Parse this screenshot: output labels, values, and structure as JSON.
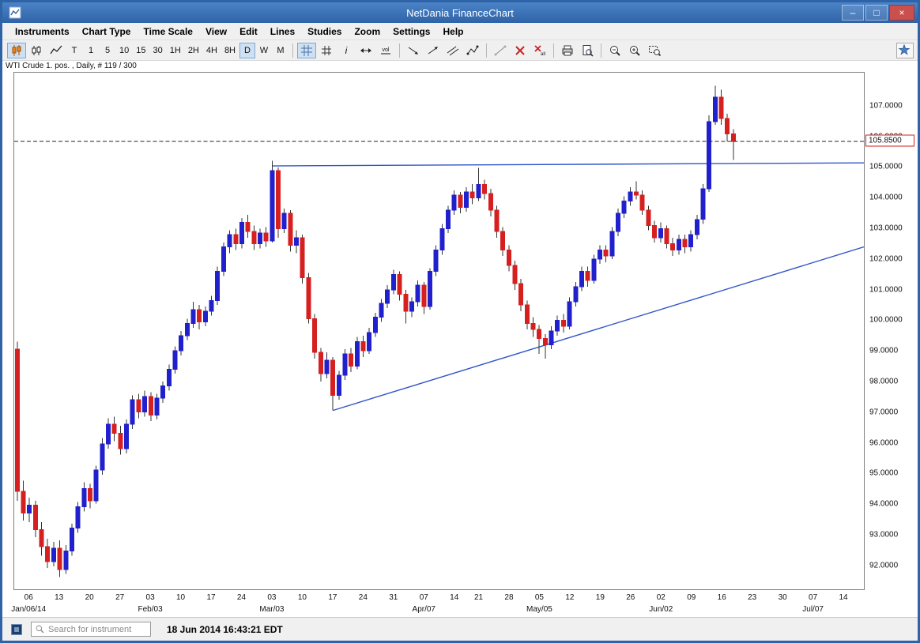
{
  "window": {
    "title": "NetDania FinanceChart",
    "controls": [
      {
        "icon": "minimize-icon"
      },
      {
        "icon": "maximize-icon"
      },
      {
        "icon": "close-icon"
      }
    ]
  },
  "menu": {
    "items": [
      "Instruments",
      "Chart Type",
      "Time Scale",
      "View",
      "Edit",
      "Lines",
      "Studies",
      "Zoom",
      "Settings",
      "Help"
    ]
  },
  "toolbar": {
    "items": [
      {
        "icon": "candlestick-chart-icon",
        "selected": true
      },
      {
        "icon": "ohlc-bars-icon"
      },
      {
        "icon": "line-chart-icon"
      },
      {
        "label": "T"
      },
      {
        "label": "1"
      },
      {
        "label": "5"
      },
      {
        "label": "10"
      },
      {
        "label": "15"
      },
      {
        "label": "30"
      },
      {
        "label": "1H"
      },
      {
        "label": "2H"
      },
      {
        "label": "4H"
      },
      {
        "label": "8H"
      },
      {
        "label": "D",
        "selected": true
      },
      {
        "label": "W"
      },
      {
        "label": "M"
      },
      {
        "sep": true
      },
      {
        "icon": "grid-icon",
        "selected": true
      },
      {
        "icon": "crosshair-grid-icon"
      },
      {
        "icon": "info-icon"
      },
      {
        "icon": "horizontal-pan-icon"
      },
      {
        "icon": "volume-icon"
      },
      {
        "sep": true
      },
      {
        "icon": "trendline-down-icon"
      },
      {
        "icon": "trendline-up-icon"
      },
      {
        "icon": "channel-lines-icon"
      },
      {
        "icon": "polyline-icon"
      },
      {
        "sep": true
      },
      {
        "icon": "line-segment-icon"
      },
      {
        "icon": "delete-line-icon"
      },
      {
        "icon": "delete-all-lines-icon"
      },
      {
        "sep": true
      },
      {
        "icon": "print-icon"
      },
      {
        "icon": "print-preview-icon"
      },
      {
        "sep": true
      },
      {
        "icon": "zoom-out-icon"
      },
      {
        "icon": "zoom-in-icon"
      },
      {
        "icon": "zoom-selection-icon"
      }
    ],
    "right_icon": "favorites-icon"
  },
  "chart": {
    "label": "WTI Crude 1. pos. , Daily, # 119 / 300"
  },
  "chart_data": {
    "type": "candlestick",
    "title": "WTI Crude 1. pos. , Daily, # 119 / 300",
    "instrument": "WTI Crude 1. pos.",
    "timeframe": "Daily",
    "visible_candles": 119,
    "total_candles": 300,
    "ylim": [
      91.2,
      108.1
    ],
    "total_slots": 140,
    "last_price": "105.8500",
    "last_price_value": 105.85,
    "up_color": "#2020cc",
    "down_color": "#d62020",
    "wick_color": "#333333",
    "trend_color": "#2f55c8",
    "grid": false,
    "price_axis_labels": [
      "107.0000",
      "106.0000",
      "105.0000",
      "104.0000",
      "103.0000",
      "102.0000",
      "101.0000",
      "100.0000",
      "99.0000",
      "98.0000",
      "97.0000",
      "96.0000",
      "95.0000",
      "94.0000",
      "93.0000",
      "92.0000"
    ],
    "day_ticks": [
      [
        2,
        "06"
      ],
      [
        7,
        "13"
      ],
      [
        12,
        "20"
      ],
      [
        17,
        "27"
      ],
      [
        22,
        "03"
      ],
      [
        27,
        "10"
      ],
      [
        32,
        "17"
      ],
      [
        37,
        "24"
      ],
      [
        42,
        "03"
      ],
      [
        47,
        "10"
      ],
      [
        52,
        "17"
      ],
      [
        57,
        "24"
      ],
      [
        62,
        "31"
      ],
      [
        67,
        "07"
      ],
      [
        72,
        "14"
      ],
      [
        76,
        "21"
      ],
      [
        81,
        "28"
      ],
      [
        86,
        "05"
      ],
      [
        91,
        "12"
      ],
      [
        96,
        "19"
      ],
      [
        101,
        "26"
      ],
      [
        106,
        "02"
      ],
      [
        111,
        "09"
      ],
      [
        116,
        "16"
      ],
      [
        121,
        "23"
      ],
      [
        126,
        "30"
      ],
      [
        131,
        "07"
      ],
      [
        136,
        "14"
      ]
    ],
    "month_ticks": [
      [
        2,
        "Jan/06/14"
      ],
      [
        22,
        "Feb/03"
      ],
      [
        42,
        "Mar/03"
      ],
      [
        67,
        "Apr/07"
      ],
      [
        86,
        "May/05"
      ],
      [
        106,
        "Jun/02"
      ],
      [
        131,
        "Jul/07"
      ]
    ],
    "trendlines": [
      {
        "x1": 42,
        "p1": 105.05,
        "x2": 140,
        "p2": 105.15
      },
      {
        "x1": 52,
        "p1": 97.05,
        "x2": 139.5,
        "p2": 102.4
      }
    ],
    "candles": [
      [
        99.05,
        99.3,
        94.1,
        94.4
      ],
      [
        94.4,
        94.75,
        93.45,
        93.7
      ],
      [
        93.7,
        94.2,
        93.4,
        93.95
      ],
      [
        93.95,
        94.1,
        92.9,
        93.15
      ],
      [
        93.15,
        93.4,
        92.3,
        92.6
      ],
      [
        92.6,
        92.85,
        91.9,
        92.1
      ],
      [
        92.1,
        92.75,
        91.95,
        92.55
      ],
      [
        92.55,
        92.8,
        91.6,
        91.85
      ],
      [
        91.85,
        92.65,
        91.7,
        92.45
      ],
      [
        92.45,
        93.35,
        92.3,
        93.2
      ],
      [
        93.2,
        94.05,
        93.05,
        93.9
      ],
      [
        93.9,
        94.7,
        93.75,
        94.5
      ],
      [
        94.5,
        94.65,
        93.85,
        94.1
      ],
      [
        94.1,
        95.25,
        94.0,
        95.1
      ],
      [
        95.1,
        96.15,
        94.95,
        95.95
      ],
      [
        95.95,
        96.8,
        95.8,
        96.6
      ],
      [
        96.6,
        96.85,
        96.05,
        96.3
      ],
      [
        96.3,
        96.55,
        95.6,
        95.8
      ],
      [
        95.8,
        96.75,
        95.65,
        96.6
      ],
      [
        96.6,
        97.55,
        96.45,
        97.4
      ],
      [
        97.4,
        97.6,
        96.8,
        97.0
      ],
      [
        97.0,
        97.7,
        96.85,
        97.5
      ],
      [
        97.5,
        97.65,
        96.7,
        96.9
      ],
      [
        96.9,
        97.6,
        96.75,
        97.45
      ],
      [
        97.45,
        98.0,
        97.3,
        97.85
      ],
      [
        97.85,
        98.55,
        97.7,
        98.4
      ],
      [
        98.4,
        99.15,
        98.25,
        99.0
      ],
      [
        99.0,
        99.65,
        98.85,
        99.5
      ],
      [
        99.5,
        100.05,
        99.35,
        99.9
      ],
      [
        99.9,
        100.6,
        99.75,
        100.35
      ],
      [
        100.35,
        100.5,
        99.7,
        99.95
      ],
      [
        99.95,
        100.45,
        99.8,
        100.3
      ],
      [
        100.3,
        100.8,
        100.15,
        100.65
      ],
      [
        100.65,
        101.75,
        100.5,
        101.6
      ],
      [
        101.6,
        102.55,
        101.45,
        102.4
      ],
      [
        102.4,
        102.95,
        102.2,
        102.8
      ],
      [
        102.8,
        103.0,
        102.3,
        102.5
      ],
      [
        102.5,
        103.35,
        102.35,
        103.2
      ],
      [
        103.2,
        103.45,
        102.7,
        102.9
      ],
      [
        102.9,
        103.1,
        102.3,
        102.5
      ],
      [
        102.5,
        103.0,
        102.35,
        102.85
      ],
      [
        102.85,
        103.05,
        102.4,
        102.6
      ],
      [
        102.6,
        105.22,
        102.55,
        104.9
      ],
      [
        104.9,
        105.0,
        102.7,
        103.0
      ],
      [
        103.0,
        103.65,
        102.85,
        103.5
      ],
      [
        103.5,
        103.6,
        102.25,
        102.45
      ],
      [
        102.45,
        102.95,
        102.2,
        102.7
      ],
      [
        102.7,
        102.8,
        101.2,
        101.4
      ],
      [
        101.4,
        101.55,
        99.9,
        100.05
      ],
      [
        100.05,
        100.2,
        98.75,
        98.95
      ],
      [
        98.95,
        99.1,
        98.0,
        98.25
      ],
      [
        98.25,
        98.95,
        98.1,
        98.7
      ],
      [
        98.7,
        98.8,
        97.05,
        97.55
      ],
      [
        97.55,
        98.35,
        97.4,
        98.2
      ],
      [
        98.2,
        99.05,
        98.05,
        98.9
      ],
      [
        98.9,
        99.1,
        98.3,
        98.5
      ],
      [
        98.5,
        99.45,
        98.4,
        99.3
      ],
      [
        99.3,
        99.5,
        98.8,
        99.0
      ],
      [
        99.0,
        99.75,
        98.9,
        99.6
      ],
      [
        99.6,
        100.25,
        99.45,
        100.1
      ],
      [
        100.1,
        100.7,
        99.95,
        100.55
      ],
      [
        100.55,
        101.15,
        100.4,
        101.0
      ],
      [
        101.0,
        101.65,
        100.85,
        101.5
      ],
      [
        101.5,
        101.6,
        100.65,
        100.85
      ],
      [
        100.85,
        101.0,
        99.9,
        100.3
      ],
      [
        100.3,
        100.75,
        100.1,
        100.6
      ],
      [
        100.6,
        101.3,
        100.45,
        101.15
      ],
      [
        101.15,
        101.25,
        100.2,
        100.45
      ],
      [
        100.45,
        101.7,
        100.35,
        101.6
      ],
      [
        101.6,
        102.45,
        101.45,
        102.3
      ],
      [
        102.3,
        103.15,
        102.15,
        103.0
      ],
      [
        103.0,
        103.75,
        102.85,
        103.6
      ],
      [
        103.6,
        104.25,
        103.45,
        104.1
      ],
      [
        104.1,
        104.2,
        103.5,
        103.7
      ],
      [
        103.7,
        104.35,
        103.55,
        104.2
      ],
      [
        104.2,
        104.45,
        103.8,
        104.0
      ],
      [
        104.0,
        104.99,
        103.9,
        104.45
      ],
      [
        104.45,
        104.6,
        103.95,
        104.15
      ],
      [
        104.15,
        104.3,
        103.4,
        103.6
      ],
      [
        103.6,
        103.75,
        102.7,
        102.9
      ],
      [
        102.9,
        103.05,
        102.1,
        102.3
      ],
      [
        102.3,
        102.45,
        101.6,
        101.8
      ],
      [
        101.8,
        101.95,
        101.0,
        101.2
      ],
      [
        101.2,
        101.35,
        100.3,
        100.5
      ],
      [
        100.5,
        100.65,
        99.7,
        99.9
      ],
      [
        99.9,
        100.1,
        99.45,
        99.7
      ],
      [
        99.7,
        99.85,
        98.9,
        99.4
      ],
      [
        99.4,
        99.55,
        98.75,
        99.2
      ],
      [
        99.2,
        99.8,
        99.05,
        99.65
      ],
      [
        99.65,
        100.15,
        99.5,
        100.0
      ],
      [
        100.0,
        100.2,
        99.6,
        99.8
      ],
      [
        99.8,
        100.75,
        99.7,
        100.6
      ],
      [
        100.6,
        101.25,
        100.45,
        101.1
      ],
      [
        101.1,
        101.75,
        100.95,
        101.6
      ],
      [
        101.6,
        101.75,
        101.1,
        101.3
      ],
      [
        101.3,
        102.15,
        101.2,
        102.0
      ],
      [
        102.0,
        102.45,
        101.85,
        102.3
      ],
      [
        102.3,
        102.45,
        101.9,
        102.1
      ],
      [
        102.1,
        103.05,
        102.0,
        102.9
      ],
      [
        102.9,
        103.65,
        102.75,
        103.5
      ],
      [
        103.5,
        104.05,
        103.35,
        103.9
      ],
      [
        103.9,
        104.35,
        103.75,
        104.2
      ],
      [
        104.2,
        104.55,
        103.95,
        104.1
      ],
      [
        104.1,
        104.25,
        103.45,
        103.6
      ],
      [
        103.6,
        103.75,
        102.95,
        103.1
      ],
      [
        103.1,
        103.25,
        102.55,
        102.7
      ],
      [
        102.7,
        103.2,
        102.55,
        103.0
      ],
      [
        103.0,
        103.1,
        102.35,
        102.5
      ],
      [
        102.5,
        102.7,
        102.1,
        102.3
      ],
      [
        102.3,
        102.8,
        102.15,
        102.65
      ],
      [
        102.65,
        102.8,
        102.2,
        102.4
      ],
      [
        102.4,
        102.95,
        102.25,
        102.8
      ],
      [
        102.8,
        103.45,
        102.65,
        103.3
      ],
      [
        103.3,
        104.45,
        103.15,
        104.3
      ],
      [
        104.3,
        106.7,
        104.2,
        106.5
      ],
      [
        106.5,
        107.68,
        106.4,
        107.3
      ],
      [
        107.3,
        107.55,
        106.4,
        106.6
      ],
      [
        106.6,
        106.75,
        105.85,
        106.1
      ],
      [
        106.1,
        106.25,
        105.25,
        105.85
      ]
    ]
  },
  "statusbar": {
    "search_placeholder": "Search for instrument",
    "timestamp": "18 Jun 2014 16:43:21 EDT"
  },
  "colors": {
    "titlebar_blue": "#2f63a7",
    "close_red": "#c9504c",
    "selected_bg": "#cfe0f2",
    "price_tag_border": "#cc2222"
  }
}
